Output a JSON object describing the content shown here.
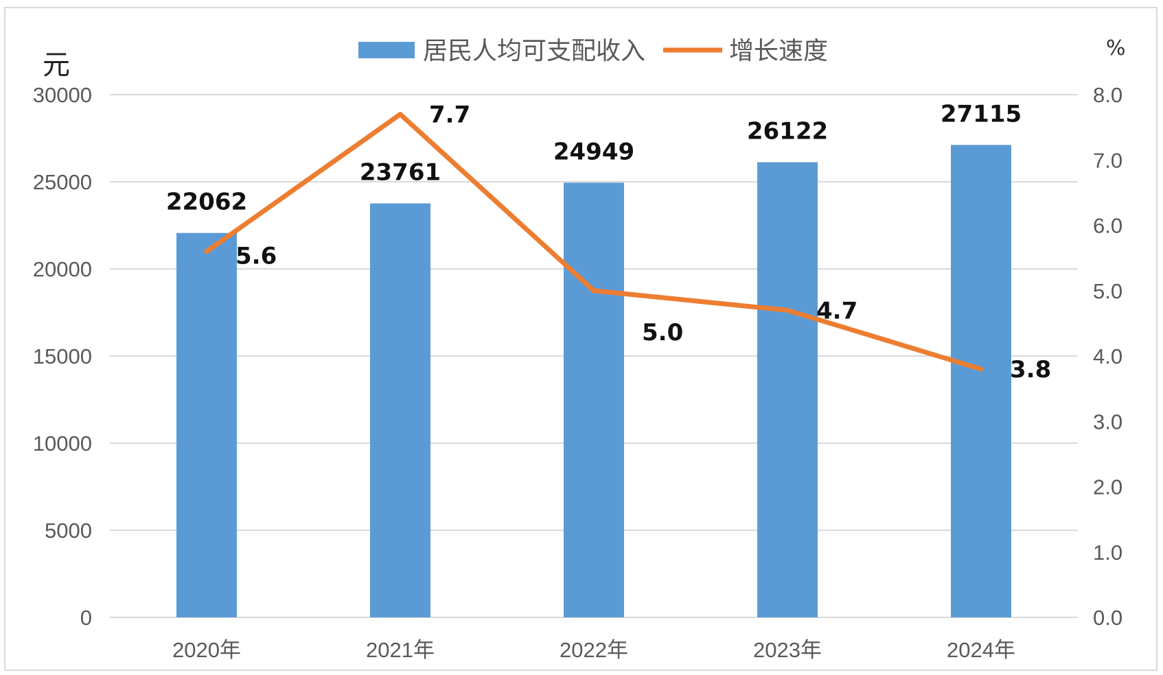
{
  "chart_data": {
    "type": "bar",
    "categories": [
      "2020年",
      "2021年",
      "2022年",
      "2023年",
      "2024年"
    ],
    "series": [
      {
        "name": "居民人均可支配收入",
        "type": "bar",
        "axis": "left",
        "values": [
          22062,
          23761,
          24949,
          26122,
          27115
        ]
      },
      {
        "name": "增长速度",
        "type": "line",
        "axis": "right",
        "values": [
          5.6,
          7.7,
          5.0,
          4.7,
          3.8
        ]
      }
    ],
    "y_left": {
      "unit": "元",
      "range": [
        0,
        30000
      ],
      "ticks": [
        "0",
        "5000",
        "10000",
        "15000",
        "20000",
        "25000",
        "30000"
      ]
    },
    "y_right": {
      "unit": "%",
      "range": [
        0,
        8
      ],
      "ticks": [
        "0.0",
        "1.0",
        "2.0",
        "3.0",
        "4.0",
        "5.0",
        "6.0",
        "7.0",
        "8.0"
      ]
    },
    "bar_labels": [
      "22062",
      "23761",
      "24949",
      "26122",
      "27115"
    ],
    "line_labels": [
      "5.6",
      "7.7",
      "5.0",
      "4.7",
      "3.8"
    ],
    "grid": true,
    "legend_position": "top-center",
    "colors": {
      "bar": "#5b9bd5",
      "line": "#ed7d31",
      "grid": "#d9d9d9"
    }
  }
}
